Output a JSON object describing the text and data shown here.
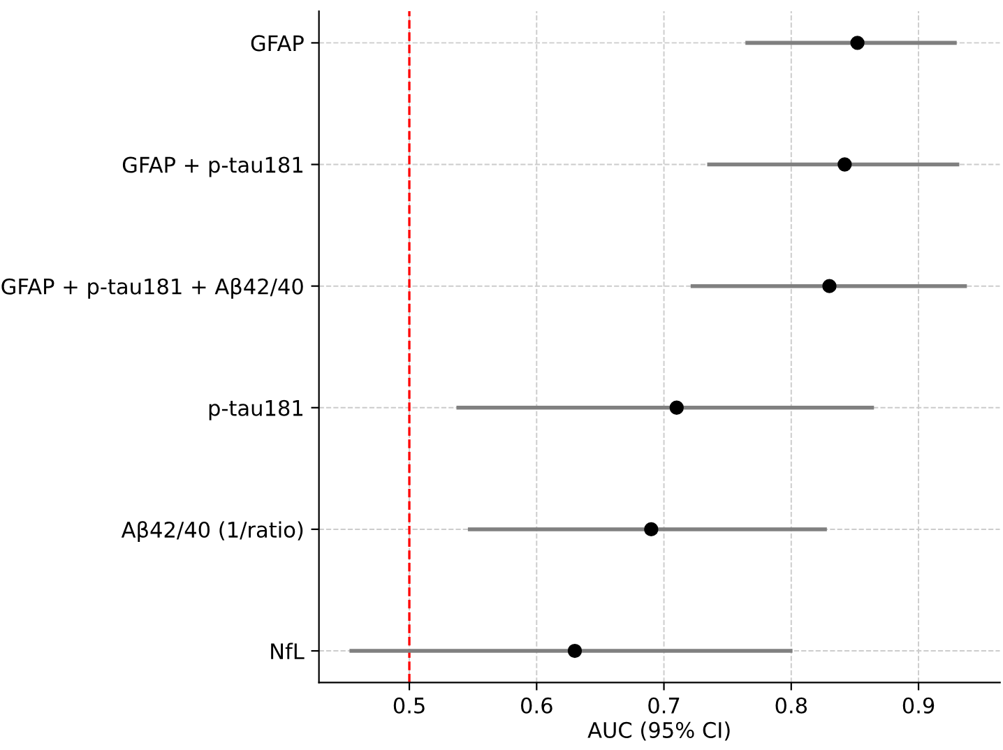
{
  "chart_data": {
    "type": "scatter",
    "orientation": "horizontal",
    "xlabel": "AUC (95% CI)",
    "categories": [
      "GFAP",
      "GFAP + p-tau181",
      "GFAP + p-tau181 + Aβ42/40",
      "p-tau181",
      "Aβ42/40 (1/ratio)",
      "NfL"
    ],
    "series": [
      {
        "color": "#000000",
        "values": [
          0.852,
          0.842,
          0.83,
          0.71,
          0.69,
          0.63
        ],
        "errors": [
          [
            0.764,
            0.93
          ],
          [
            0.734,
            0.932
          ],
          [
            0.721,
            0.938
          ],
          [
            0.537,
            0.865
          ],
          [
            0.546,
            0.828
          ],
          [
            0.453,
            0.801
          ]
        ]
      }
    ],
    "xlim": [
      0.429,
      0.964
    ],
    "xticks": [
      0.5,
      0.6,
      0.7,
      0.8,
      0.9
    ],
    "ref_lines": [
      {
        "axis": "x",
        "value": 0.5,
        "color": "#ff0000",
        "line_style": "dashed"
      }
    ],
    "grid": true,
    "marker": "circle",
    "legend": false
  }
}
